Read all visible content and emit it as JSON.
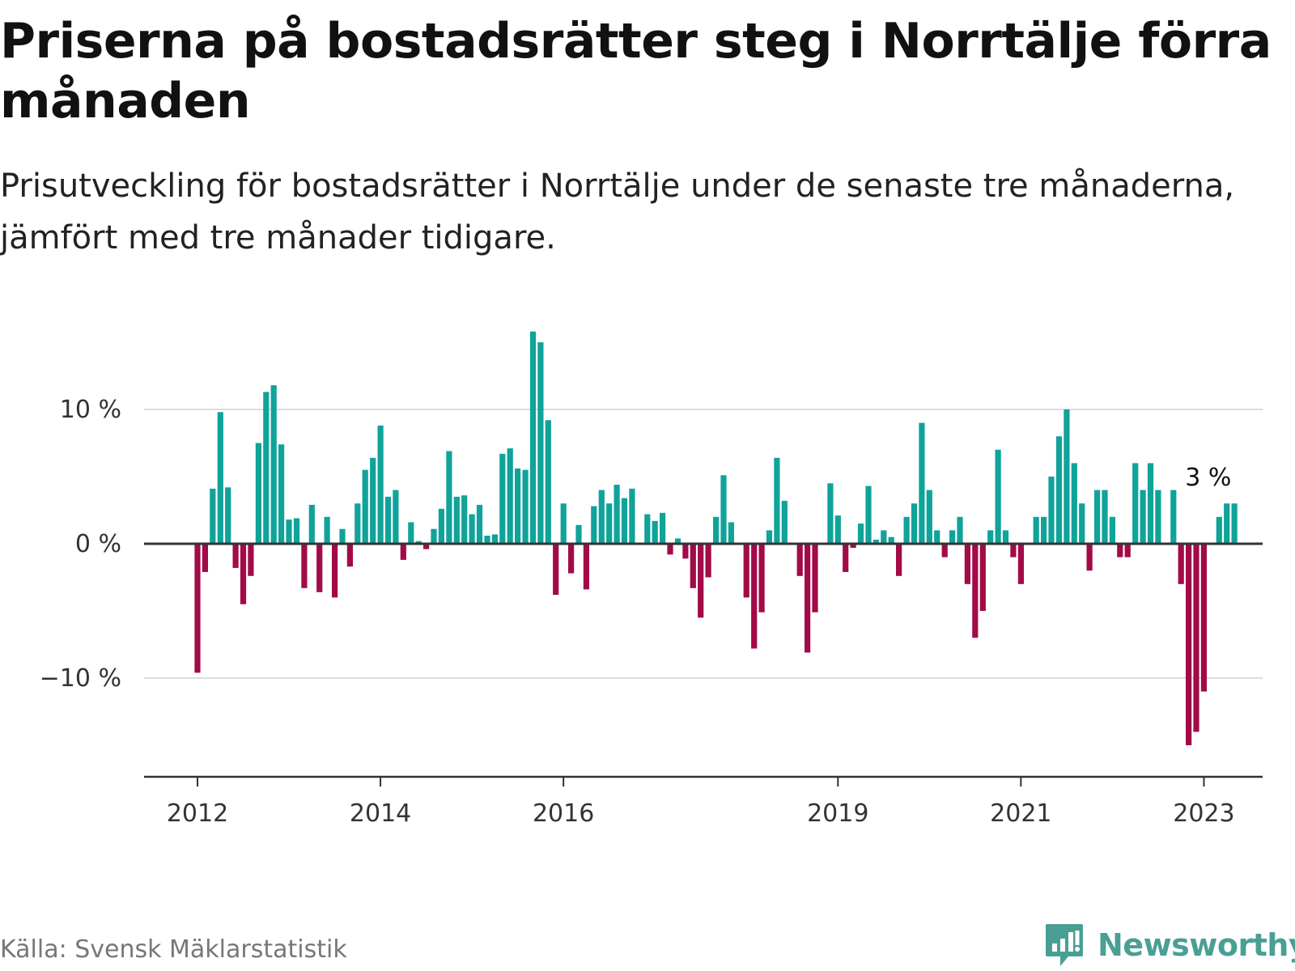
{
  "title": "Priserna på bostadsrätter steg i Norrtälje förra månaden",
  "subtitle": "Prisutveckling för bostadsrätter i Norrtälje under de senaste tre månaderna, jämfört med tre månader tidigare.",
  "source": "Källa: Svensk Mäklarstatistik",
  "logo_text": "Newsworthy",
  "colors": {
    "positive": "#0fa39a",
    "negative": "#a20a48",
    "grid": "#dddddd",
    "axis": "#333333",
    "logo": "#4a9f94"
  },
  "chart_data": {
    "type": "bar",
    "title": "Priserna på bostadsrätter steg i Norrtälje förra månaden",
    "subtitle": "Prisutveckling för bostadsrätter i Norrtälje under de senaste tre månaderna, jämfört med tre månader tidigare.",
    "xlabel": "",
    "ylabel": "",
    "start": "2012-01",
    "y_ticks": [
      {
        "value": 10,
        "label": "10 %"
      },
      {
        "value": 0,
        "label": "0 %"
      },
      {
        "value": -10,
        "label": "−10 %"
      }
    ],
    "x_ticks": [
      {
        "month": "2012-01",
        "label": "2012"
      },
      {
        "month": "2014-01",
        "label": "2014"
      },
      {
        "month": "2016-01",
        "label": "2016"
      },
      {
        "month": "2019-01",
        "label": "2019"
      },
      {
        "month": "2021-01",
        "label": "2021"
      },
      {
        "month": "2023-01",
        "label": "2023"
      }
    ],
    "ylim": [
      -17,
      17
    ],
    "grid": true,
    "annotation": {
      "label": "3 %",
      "month": "2023-01"
    },
    "values": [
      -9.6,
      -2.1,
      4.1,
      9.8,
      4.2,
      -1.8,
      -4.5,
      -2.4,
      7.5,
      11.3,
      11.8,
      7.4,
      1.8,
      1.9,
      -3.3,
      2.9,
      -3.6,
      2.0,
      -4.0,
      1.1,
      -1.7,
      3.0,
      5.5,
      6.4,
      8.8,
      3.5,
      4.0,
      -1.2,
      1.6,
      0.2,
      -0.4,
      1.1,
      2.6,
      6.9,
      3.5,
      3.6,
      2.2,
      2.9,
      0.6,
      0.7,
      6.7,
      7.1,
      5.6,
      5.5,
      15.8,
      15.0,
      9.2,
      -3.8,
      3.0,
      -2.2,
      1.4,
      -3.4,
      2.8,
      4.0,
      3.0,
      4.4,
      3.4,
      4.1,
      null,
      2.2,
      1.7,
      2.3,
      -0.8,
      0.4,
      -1.1,
      -3.3,
      -5.5,
      -2.5,
      2.0,
      5.1,
      1.6,
      null,
      -4.0,
      -7.8,
      -5.1,
      1.0,
      6.4,
      3.2,
      null,
      -2.4,
      -8.1,
      -5.1,
      null,
      4.5,
      2.1,
      -2.1,
      -0.3,
      1.5,
      4.3,
      0.3,
      1.0,
      0.5,
      -2.4,
      2.0,
      3.0,
      9.0,
      4.0,
      1.0,
      -1.0,
      1.0,
      2.0,
      -3.0,
      -7.0,
      -5.0,
      1.0,
      7.0,
      1.0,
      -1.0,
      -3.0,
      null,
      2.0,
      2.0,
      5.0,
      8.0,
      10.0,
      6.0,
      3.0,
      -2.0,
      4.0,
      4.0,
      2.0,
      -1.0,
      -1.0,
      6.0,
      4.0,
      6.0,
      4.0,
      null,
      4.0,
      -3.0,
      -15.0,
      -14.0,
      -11.0,
      null,
      2.0,
      3.0,
      3.0
    ]
  }
}
